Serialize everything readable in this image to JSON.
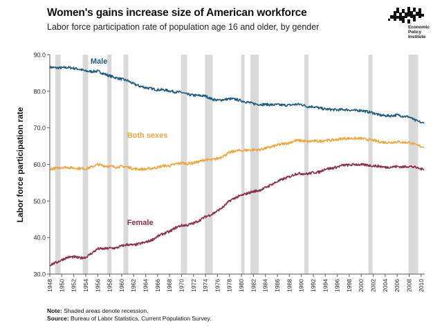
{
  "title": "Women's gains increase size of American workforce",
  "subtitle": "Labor force participation rate of population age 16 and older, by gender",
  "logo": {
    "lines": [
      "Economic",
      "Policy",
      "Institute"
    ]
  },
  "notes": {
    "note_label": "Note:",
    "note_text": "Shaded areas denote recession.",
    "source_label": "Source:",
    "source_text": "Bureau of Labor Statistics, Current Population Survey."
  },
  "colors": {
    "male": "#1f5a7e",
    "both": "#f2a33a",
    "female": "#8a2a4c",
    "recession": "#d9d9d9"
  },
  "chart_data": {
    "type": "line",
    "ylabel": "Labor force participation rate",
    "xlabel": "",
    "xlim": [
      1948,
      2010.6
    ],
    "ylim": [
      30,
      90
    ],
    "yticks": [
      "30.0",
      "40.0",
      "50.0",
      "60.0",
      "70.0",
      "80.0",
      "90.0"
    ],
    "xticks": [
      "1948",
      "1950",
      "1952",
      "1954",
      "1956",
      "1958",
      "1960",
      "1962",
      "1964",
      "1966",
      "1968",
      "1970",
      "1972",
      "1974",
      "1976",
      "1978",
      "1980",
      "1982",
      "1984",
      "1986",
      "1988",
      "1990",
      "1992",
      "1994",
      "1996",
      "1998",
      "2000",
      "2002",
      "2004",
      "2006",
      "2008",
      "2010"
    ],
    "recessions": [
      [
        1948.9,
        1949.8
      ],
      [
        1953.5,
        1954.4
      ],
      [
        1957.6,
        1958.3
      ],
      [
        1960.3,
        1961.1
      ],
      [
        1969.9,
        1970.9
      ],
      [
        1973.9,
        1975.2
      ],
      [
        1980.0,
        1980.5
      ],
      [
        1981.5,
        1982.9
      ],
      [
        1990.5,
        1991.2
      ],
      [
        2001.2,
        2001.9
      ],
      [
        2007.9,
        2009.5
      ]
    ],
    "series": [
      {
        "name": "Male",
        "key": "male",
        "x": [
          1948,
          1949,
          1950,
          1951,
          1952,
          1953,
          1954,
          1955,
          1956,
          1957,
          1958,
          1959,
          1960,
          1961,
          1962,
          1963,
          1964,
          1965,
          1966,
          1967,
          1968,
          1969,
          1970,
          1971,
          1972,
          1973,
          1974,
          1975,
          1976,
          1977,
          1978,
          1979,
          1980,
          1981,
          1982,
          1983,
          1984,
          1985,
          1986,
          1987,
          1988,
          1989,
          1990,
          1991,
          1992,
          1993,
          1994,
          1995,
          1996,
          1997,
          1998,
          1999,
          2000,
          2001,
          2002,
          2003,
          2004,
          2005,
          2006,
          2007,
          2008,
          2009,
          2010.5
        ],
        "values": [
          86.6,
          86.4,
          86.4,
          86.5,
          86.3,
          86.0,
          85.5,
          85.4,
          85.5,
          84.8,
          84.2,
          83.7,
          83.3,
          82.9,
          82.0,
          81.4,
          81.0,
          80.7,
          80.4,
          80.4,
          80.1,
          79.8,
          79.7,
          79.1,
          78.9,
          78.8,
          78.7,
          77.9,
          77.5,
          77.7,
          77.9,
          77.8,
          77.4,
          77.0,
          76.6,
          76.4,
          76.4,
          76.3,
          76.3,
          76.2,
          76.2,
          76.4,
          76.4,
          75.8,
          75.8,
          75.4,
          75.1,
          75.0,
          74.9,
          75.0,
          74.9,
          74.7,
          74.8,
          74.4,
          74.1,
          73.5,
          73.3,
          73.3,
          73.5,
          73.2,
          73.0,
          72.0,
          71.2
        ]
      },
      {
        "name": "Both sexes",
        "key": "both",
        "x": [
          1948,
          1949,
          1950,
          1951,
          1952,
          1953,
          1954,
          1955,
          1956,
          1957,
          1958,
          1959,
          1960,
          1961,
          1962,
          1963,
          1964,
          1965,
          1966,
          1967,
          1968,
          1969,
          1970,
          1971,
          1972,
          1973,
          1974,
          1975,
          1976,
          1977,
          1978,
          1979,
          1980,
          1981,
          1982,
          1983,
          1984,
          1985,
          1986,
          1987,
          1988,
          1989,
          1990,
          1991,
          1992,
          1993,
          1994,
          1995,
          1996,
          1997,
          1998,
          1999,
          2000,
          2001,
          2002,
          2003,
          2004,
          2005,
          2006,
          2007,
          2008,
          2009,
          2010.5
        ],
        "values": [
          58.8,
          58.9,
          59.2,
          59.2,
          59.0,
          58.9,
          58.8,
          59.3,
          60.0,
          59.6,
          59.5,
          59.3,
          59.4,
          59.3,
          58.8,
          58.7,
          58.7,
          58.9,
          59.2,
          59.6,
          59.6,
          60.1,
          60.4,
          60.2,
          60.4,
          60.8,
          61.3,
          61.2,
          61.6,
          62.3,
          63.2,
          63.7,
          63.8,
          63.9,
          64.0,
          64.0,
          64.4,
          64.8,
          65.3,
          65.6,
          65.9,
          66.5,
          66.5,
          66.2,
          66.4,
          66.3,
          66.6,
          66.6,
          66.8,
          67.1,
          67.1,
          67.1,
          67.1,
          66.8,
          66.6,
          66.2,
          66.0,
          66.0,
          66.2,
          66.0,
          66.0,
          65.4,
          64.7
        ]
      },
      {
        "name": "Female",
        "key": "female",
        "x": [
          1948,
          1949,
          1950,
          1951,
          1952,
          1953,
          1954,
          1955,
          1956,
          1957,
          1958,
          1959,
          1960,
          1961,
          1962,
          1963,
          1964,
          1965,
          1966,
          1967,
          1968,
          1969,
          1970,
          1971,
          1972,
          1973,
          1974,
          1975,
          1976,
          1977,
          1978,
          1979,
          1980,
          1981,
          1982,
          1983,
          1984,
          1985,
          1986,
          1987,
          1988,
          1989,
          1990,
          1991,
          1992,
          1993,
          1994,
          1995,
          1996,
          1997,
          1998,
          1999,
          2000,
          2001,
          2002,
          2003,
          2004,
          2005,
          2006,
          2007,
          2008,
          2009,
          2010.5
        ],
        "values": [
          32.5,
          33.1,
          33.9,
          34.6,
          34.7,
          34.4,
          34.6,
          35.7,
          36.9,
          36.9,
          37.1,
          37.1,
          37.7,
          38.1,
          37.9,
          38.3,
          38.7,
          39.3,
          40.3,
          41.1,
          41.6,
          42.7,
          43.3,
          43.4,
          43.9,
          44.7,
          45.7,
          46.3,
          47.3,
          48.4,
          50.0,
          50.9,
          51.5,
          52.1,
          52.6,
          52.9,
          53.6,
          54.5,
          55.3,
          56.0,
          56.6,
          57.4,
          57.5,
          57.4,
          57.8,
          57.9,
          58.8,
          58.9,
          59.3,
          59.8,
          59.8,
          60.0,
          59.9,
          59.8,
          59.6,
          59.5,
          59.2,
          59.3,
          59.4,
          59.3,
          59.5,
          59.2,
          58.5
        ]
      }
    ],
    "series_labels": [
      {
        "key": "male",
        "text": "Male",
        "x": 1954.8,
        "y": 87.5
      },
      {
        "key": "both",
        "text": "Both sexes",
        "x": 1960.9,
        "y": 67.3
      },
      {
        "key": "female",
        "text": "Female",
        "x": 1960.9,
        "y": 43.4
      }
    ]
  }
}
